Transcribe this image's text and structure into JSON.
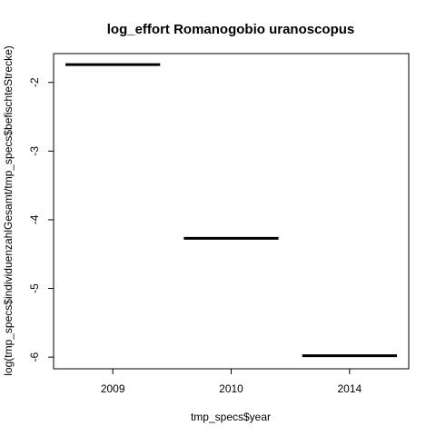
{
  "chart_data": {
    "type": "boxplot",
    "title": "log_effort Romanogobio uranoscopus",
    "xlabel": "tmp_specs$year",
    "ylabel": "log(tmp_specs$individuenzahlGesamt/tmp_specs$befischteStrecke)",
    "categories": [
      "2009",
      "2010",
      "2014"
    ],
    "values": [
      -1.74,
      -4.27,
      -5.98
    ],
    "ylim": [
      -6.17,
      -1.58
    ],
    "yticks": [
      -2,
      -3,
      -4,
      -5,
      -6
    ],
    "grid": false,
    "legend": "none",
    "color": "#000000"
  }
}
